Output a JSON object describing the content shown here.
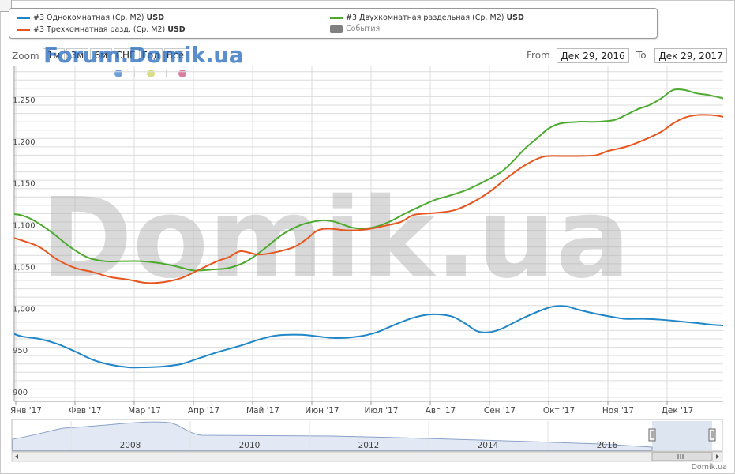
{
  "legend": {
    "items": [
      {
        "label": "#3 Однокомнатная (Ср. М2)",
        "unit": "USD",
        "color": "#1f86c8"
      },
      {
        "label": "#3 Двухкомнатная раздельная (Ср. М2)",
        "unit": "USD",
        "color": "#4caa2f"
      },
      {
        "label": "#3 Трехкомнатная разд. (Ср. М2)",
        "unit": "USD",
        "color": "#e8561f"
      },
      {
        "label": "События",
        "unit": "",
        "color": "#808080"
      }
    ]
  },
  "zoom": {
    "label": "Zoom",
    "buttons": [
      "1м",
      "3м",
      "6м",
      "СНГ",
      "Год",
      "Всё"
    ]
  },
  "watermark": {
    "top": "Forum.Domik.ua",
    "center": "Domik.ua"
  },
  "range": {
    "from_label": "From",
    "from_value": "Дек 29, 2016",
    "to_label": "To",
    "to_value": "Дек 29, 2017"
  },
  "credit": "Domik.ua",
  "chart_data": {
    "type": "line",
    "ylim": [
      900,
      1300
    ],
    "yticks": [
      900,
      950,
      1000,
      1050,
      1100,
      1150,
      1200,
      1250
    ],
    "xlim": [
      0,
      11.95
    ],
    "xticks": [
      "Янв '17",
      "Фев '17",
      "Мар '17",
      "Апр '17",
      "Май '17",
      "Июн '17",
      "Июл '17",
      "Авг '17",
      "Сен '17",
      "Окт '17",
      "Ноя '17",
      "Дек '17"
    ],
    "grid": true,
    "legend_position": "top",
    "series": [
      {
        "name": "#3 Однокомнатная (Ср. М2)",
        "color": "#1f86c8",
        "x": [
          -0.1,
          0.1,
          0.4,
          0.7,
          1.0,
          1.3,
          1.6,
          1.9,
          2.2,
          2.5,
          2.8,
          3.1,
          3.4,
          3.8,
          4.1,
          4.4,
          4.8,
          5.1,
          5.4,
          5.8,
          6.1,
          6.4,
          6.7,
          6.95,
          7.2,
          7.4,
          7.6,
          7.8,
          8.0,
          8.2,
          8.4,
          8.6,
          8.9,
          9.1,
          9.3,
          9.5,
          9.8,
          10.1,
          10.3,
          10.6,
          10.9,
          11.2,
          11.5,
          11.75,
          11.95
        ],
        "y": [
          978,
          973,
          970,
          964,
          955,
          945,
          939,
          936,
          936,
          937,
          940,
          947,
          954,
          962,
          969,
          974,
          975,
          973,
          971,
          973,
          978,
          987,
          995,
          999,
          999,
          996,
          988,
          979,
          978,
          982,
          989,
          996,
          1005,
          1009,
          1009,
          1005,
          1000,
          996,
          994,
          994,
          993,
          991,
          989,
          987,
          986
        ]
      },
      {
        "name": "#3 Двухкомнатная раздельная (Ср. М2)",
        "color": "#4caa2f",
        "x": [
          -0.1,
          0.1,
          0.3,
          0.6,
          0.9,
          1.2,
          1.5,
          1.8,
          2.1,
          2.4,
          2.7,
          3.0,
          3.3,
          3.6,
          3.9,
          4.2,
          4.5,
          4.8,
          5.0,
          5.2,
          5.4,
          5.7,
          6.0,
          6.3,
          6.6,
          6.9,
          7.1,
          7.3,
          7.6,
          7.9,
          8.2,
          8.4,
          8.6,
          8.8,
          9.0,
          9.2,
          9.5,
          9.8,
          10.1,
          10.3,
          10.5,
          10.7,
          10.9,
          11.1,
          11.3,
          11.5,
          11.7,
          11.95
        ],
        "y": [
          1120,
          1118,
          1112,
          1098,
          1081,
          1068,
          1063,
          1063,
          1063,
          1061,
          1057,
          1052,
          1053,
          1055,
          1063,
          1078,
          1095,
          1106,
          1110,
          1112,
          1110,
          1103,
          1103,
          1110,
          1121,
          1131,
          1137,
          1141,
          1148,
          1158,
          1170,
          1183,
          1198,
          1210,
          1222,
          1228,
          1230,
          1230,
          1232,
          1238,
          1245,
          1250,
          1258,
          1268,
          1268,
          1264,
          1262,
          1258
        ]
      },
      {
        "name": "#3 Трехкомнатная разд. (Ср. М2)",
        "color": "#e8561f",
        "x": [
          -0.1,
          0.1,
          0.4,
          0.7,
          1.0,
          1.3,
          1.6,
          1.9,
          2.2,
          2.5,
          2.8,
          3.1,
          3.4,
          3.6,
          3.8,
          4.1,
          4.4,
          4.7,
          4.9,
          5.1,
          5.3,
          5.6,
          5.9,
          6.2,
          6.5,
          6.7,
          6.9,
          7.1,
          7.4,
          7.7,
          8.0,
          8.3,
          8.6,
          8.9,
          9.2,
          9.5,
          9.8,
          10.0,
          10.3,
          10.6,
          10.9,
          11.1,
          11.3,
          11.5,
          11.75,
          11.95
        ],
        "y": [
          1092,
          1088,
          1080,
          1065,
          1055,
          1050,
          1044,
          1041,
          1037,
          1038,
          1043,
          1053,
          1063,
          1068,
          1075,
          1071,
          1074,
          1080,
          1089,
          1100,
          1102,
          1100,
          1101,
          1105,
          1110,
          1118,
          1120,
          1121,
          1124,
          1133,
          1146,
          1163,
          1178,
          1188,
          1189,
          1189,
          1190,
          1195,
          1200,
          1208,
          1218,
          1228,
          1235,
          1238,
          1238,
          1236
        ]
      }
    ]
  },
  "navigator": {
    "labels": [
      "2008",
      "2010",
      "2012",
      "2014",
      "2016"
    ]
  }
}
